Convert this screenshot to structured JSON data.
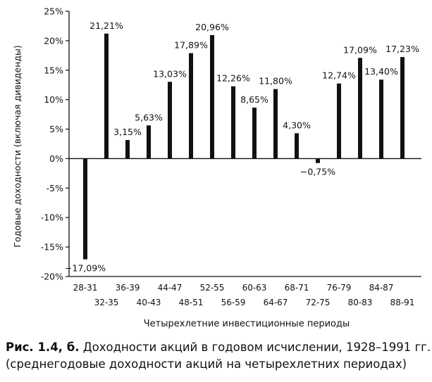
{
  "chart_data": {
    "type": "bar",
    "categories": [
      "28-31",
      "32-35",
      "36-39",
      "40-43",
      "44-47",
      "48-51",
      "52-55",
      "56-59",
      "60-63",
      "64-67",
      "68-71",
      "72-75",
      "76-79",
      "80-83",
      "84-87",
      "88-91"
    ],
    "values": [
      -17.09,
      21.21,
      3.15,
      5.63,
      13.03,
      17.89,
      20.96,
      12.26,
      8.65,
      11.8,
      4.3,
      -0.75,
      12.74,
      17.09,
      13.4,
      17.23
    ],
    "data_labels": [
      "−17,09%",
      "21,21%",
      "3,15%",
      "5,63%",
      "13,03%",
      "17,89%",
      "20,96%",
      "12,26%",
      "8,65%",
      "11,80%",
      "4,30%",
      "−0,75%",
      "12,74%",
      "17,09%",
      "13,40%",
      "17,23%"
    ],
    "xlabel": "Четырехлетние инвестиционные периоды",
    "ylabel": "Годовые доходности (включая дивиденды)",
    "ylim": [
      -20,
      25
    ],
    "yticks": [
      25,
      20,
      15,
      10,
      5,
      0,
      -5,
      -10,
      -15,
      -20
    ],
    "ytick_labels": [
      "25%",
      "20%",
      "15%",
      "10%",
      "5%",
      "0%",
      "-5%",
      "-10%",
      "-15%",
      "-20%"
    ],
    "grid": false,
    "bar_color": "#111111"
  },
  "caption": {
    "figure_number": "Рис. 1.4, б.",
    "line1": "Доходности акций в годовом исчислении, 1928–1991 гг.",
    "line2": "(среднегодовые доходности акций на четырехлетних периодах)"
  }
}
